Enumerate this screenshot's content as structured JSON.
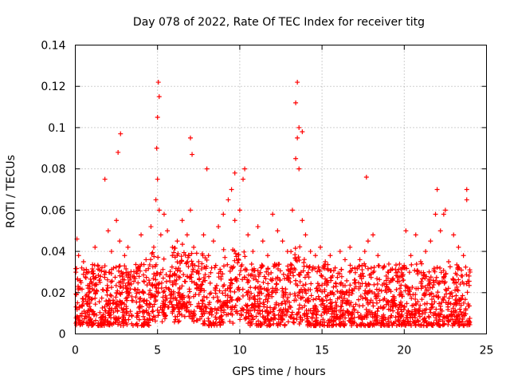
{
  "chart_data": {
    "type": "scatter",
    "title": "Day 078 of 2022, Rate Of TEC Index for receiver titg",
    "xlabel": "GPS time / hours",
    "ylabel": "ROTI / TECUs",
    "xlim": [
      0,
      25
    ],
    "ylim": [
      0,
      0.14
    ],
    "xticks": [
      0,
      5,
      10,
      15,
      20,
      25
    ],
    "xtick_labels": [
      "0",
      "5",
      "10",
      "15",
      "20",
      "25"
    ],
    "yticks": [
      0,
      0.02,
      0.04,
      0.06,
      0.08,
      0.1,
      0.12,
      0.14
    ],
    "ytick_labels": [
      "0",
      "0.02",
      "0.04",
      "0.06",
      "0.08",
      "0.1",
      "0.12",
      "0.14"
    ],
    "grid": true,
    "marker": "+",
    "color": "#ff0000",
    "series": [
      {
        "x": [
          0.1,
          0.2,
          0.3,
          0.5,
          0.8,
          1.0,
          1.2,
          1.5,
          1.8,
          2.0,
          2.2,
          2.5,
          2.7,
          2.8,
          3.0,
          3.2,
          3.5,
          3.8,
          4.0,
          4.3,
          4.6,
          4.9,
          5.0,
          5.1,
          5.2,
          5.4,
          5.6,
          5.9,
          6.2,
          6.5,
          6.8,
          7.0,
          7.2,
          7.5,
          7.8,
          8.1,
          8.4,
          8.7,
          9.0,
          9.3,
          9.5,
          9.7,
          10.0,
          10.2,
          10.5,
          10.8,
          11.1,
          11.4,
          11.7,
          12.0,
          12.3,
          12.6,
          12.9,
          13.2,
          13.4,
          13.5,
          13.6,
          13.8,
          14.0,
          14.3,
          14.6,
          14.9,
          15.2,
          15.5,
          15.8,
          16.1,
          16.4,
          16.7,
          17.0,
          17.3,
          17.6,
          17.8,
          18.1,
          18.4,
          18.7,
          19.0,
          19.3,
          19.6,
          19.9,
          20.1,
          20.4,
          20.7,
          21.0,
          21.3,
          21.6,
          21.9,
          22.2,
          22.4,
          22.7,
          23.0,
          23.3,
          23.6,
          23.8,
          24.0,
          2.75,
          2.6,
          5.05,
          5.0,
          4.95,
          5.1,
          7.0,
          7.1,
          13.5,
          13.4,
          13.6,
          13.8,
          17.7,
          22.0,
          22.5,
          23.8,
          1.8,
          9.7,
          10.3,
          8.0
        ],
        "y": [
          0.046,
          0.038,
          0.022,
          0.035,
          0.018,
          0.03,
          0.042,
          0.025,
          0.033,
          0.05,
          0.04,
          0.055,
          0.045,
          0.03,
          0.038,
          0.042,
          0.028,
          0.032,
          0.048,
          0.036,
          0.052,
          0.065,
          0.075,
          0.06,
          0.048,
          0.058,
          0.05,
          0.038,
          0.045,
          0.055,
          0.048,
          0.06,
          0.042,
          0.035,
          0.048,
          0.038,
          0.045,
          0.052,
          0.058,
          0.065,
          0.07,
          0.055,
          0.06,
          0.075,
          0.048,
          0.04,
          0.052,
          0.045,
          0.038,
          0.058,
          0.05,
          0.045,
          0.04,
          0.06,
          0.085,
          0.095,
          0.08,
          0.055,
          0.048,
          0.04,
          0.038,
          0.042,
          0.035,
          0.038,
          0.032,
          0.04,
          0.036,
          0.042,
          0.032,
          0.036,
          0.04,
          0.045,
          0.048,
          0.038,
          0.032,
          0.03,
          0.026,
          0.03,
          0.028,
          0.05,
          0.038,
          0.048,
          0.035,
          0.04,
          0.045,
          0.058,
          0.05,
          0.058,
          0.035,
          0.048,
          0.042,
          0.038,
          0.065,
          0.03,
          0.097,
          0.088,
          0.122,
          0.105,
          0.09,
          0.115,
          0.095,
          0.087,
          0.122,
          0.112,
          0.1,
          0.098,
          0.076,
          0.07,
          0.06,
          0.07,
          0.075,
          0.078,
          0.08,
          0.08
        ]
      }
    ],
    "annotations": [
      "dense cloud of ROTI values between ~0.005 and ~0.03 TECUs across 0–24 h"
    ]
  }
}
